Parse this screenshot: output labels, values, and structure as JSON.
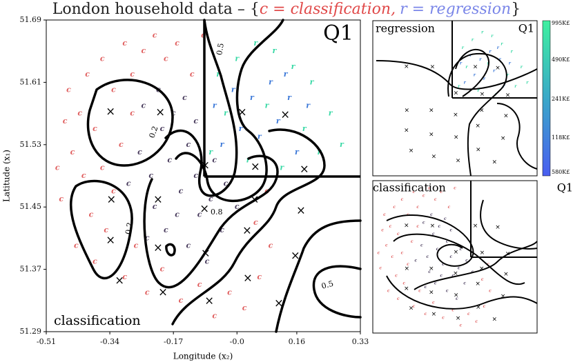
{
  "chart_data": {
    "type": "scatter",
    "title": {
      "text": "London household data – {",
      "classification": "c = classification,",
      "regression": "r = regression",
      "close": "}"
    },
    "xlabel": "Longitude (x₂)",
    "ylabel": "Latitude (x₁)",
    "xlim": [
      -0.51,
      0.33
    ],
    "ylim": [
      51.29,
      51.69
    ],
    "xticks": [
      -0.51,
      -0.34,
      -0.17,
      {
        "value": 0,
        "label": "-0.0"
      },
      0.16,
      0.33
    ],
    "yticks": [
      51.29,
      51.37,
      51.45,
      51.53,
      51.61,
      51.69
    ],
    "quadrant": {
      "x": -0.087,
      "y": 51.489
    },
    "annotations": {
      "main_quadrant": "Q1",
      "main_task": "classification",
      "reg_task": "regression",
      "reg_quadrant": "Q1",
      "cls_task": "classification",
      "cls_quadrant": "Q1"
    },
    "contour_labels": [
      "0.5",
      "0.2",
      "0.8",
      "0.5",
      "0.2"
    ],
    "colorbar_labels": [
      "995K£",
      "490K£",
      "241K£",
      "118K£",
      "580K£"
    ],
    "series": [
      {
        "marker": "c",
        "task": "classification",
        "color": "#e06060",
        "x": [
          -0.45,
          -0.42,
          -0.4,
          -0.38,
          -0.36,
          -0.33,
          -0.3,
          -0.28,
          -0.25,
          -0.22,
          -0.19,
          -0.16,
          -0.44,
          -0.41,
          -0.47,
          -0.39,
          -0.36,
          -0.33,
          -0.43,
          -0.38,
          -0.35,
          -0.3,
          -0.27,
          -0.24,
          -0.2,
          -0.15,
          -0.1,
          -0.06,
          -0.02,
          0.02,
          0.06,
          0.09,
          0.05,
          0.08,
          -0.46,
          -0.31,
          -0.28,
          -0.12,
          -0.09,
          -0.48
        ],
        "y": [
          51.6,
          51.57,
          51.62,
          51.55,
          51.64,
          51.6,
          51.66,
          51.62,
          51.65,
          51.67,
          51.64,
          51.66,
          51.52,
          51.49,
          51.46,
          51.44,
          51.5,
          51.47,
          51.4,
          51.38,
          51.42,
          51.36,
          51.4,
          51.34,
          51.37,
          51.33,
          51.35,
          51.31,
          51.34,
          51.32,
          51.36,
          51.4,
          51.43,
          51.47,
          51.56,
          51.53,
          51.57,
          51.62,
          51.67,
          51.5
        ]
      },
      {
        "marker": "c",
        "task": "classification",
        "color": "#4a3d5e",
        "x": [
          -0.26,
          -0.23,
          -0.2,
          -0.18,
          -0.15,
          -0.13,
          -0.11,
          -0.22,
          -0.19,
          -0.16,
          -0.1,
          -0.07,
          -0.04,
          -0.13,
          -0.08,
          -0.25,
          -0.21,
          -0.17,
          -0.14,
          -0.11,
          -0.29,
          -0.03,
          0.0,
          -0.06,
          -0.24
        ],
        "y": [
          51.52,
          51.49,
          51.55,
          51.51,
          51.47,
          51.53,
          51.49,
          51.45,
          51.42,
          51.44,
          51.44,
          51.46,
          51.42,
          51.4,
          51.38,
          51.58,
          51.6,
          51.57,
          51.59,
          51.56,
          51.48,
          51.48,
          51.45,
          51.51,
          51.41
        ]
      },
      {
        "marker": "r",
        "task": "regression",
        "color": "#39d9a6",
        "x": [
          -0.05,
          0.0,
          0.05,
          0.1,
          0.15,
          0.2,
          0.25,
          0.28,
          0.22,
          0.12,
          0.03,
          -0.07,
          0.18,
          0.08,
          -0.03
        ],
        "y": [
          51.62,
          51.64,
          51.66,
          51.65,
          51.63,
          51.61,
          51.57,
          51.53,
          51.52,
          51.5,
          51.51,
          51.52,
          51.55,
          51.58,
          51.57
        ]
      },
      {
        "marker": "r",
        "task": "regression",
        "color": "#3b78d8",
        "x": [
          -0.06,
          -0.01,
          0.04,
          0.09,
          0.14,
          0.01,
          0.06,
          0.11,
          0.16,
          -0.04,
          0.13,
          0.19
        ],
        "y": [
          51.58,
          51.6,
          51.59,
          51.61,
          51.59,
          51.55,
          51.54,
          51.56,
          51.52,
          51.53,
          51.62,
          51.58
        ]
      }
    ],
    "inducing": {
      "marker": "×",
      "color": "#000000",
      "x": [
        -0.338,
        -0.205,
        0.014,
        0.129,
        -0.085,
        0.049,
        0.18,
        -0.336,
        -0.211,
        -0.087,
        0.047,
        0.171,
        -0.338,
        -0.211,
        -0.084,
        0.027,
        0.156,
        -0.314,
        -0.198,
        -0.074,
        0.029,
        0.112
      ],
      "y": [
        51.572,
        51.571,
        51.571,
        51.568,
        51.503,
        51.501,
        51.498,
        51.459,
        51.459,
        51.447,
        51.459,
        51.445,
        51.407,
        51.397,
        51.39,
        51.419,
        51.387,
        51.355,
        51.34,
        51.329,
        51.358,
        51.326
      ]
    }
  }
}
